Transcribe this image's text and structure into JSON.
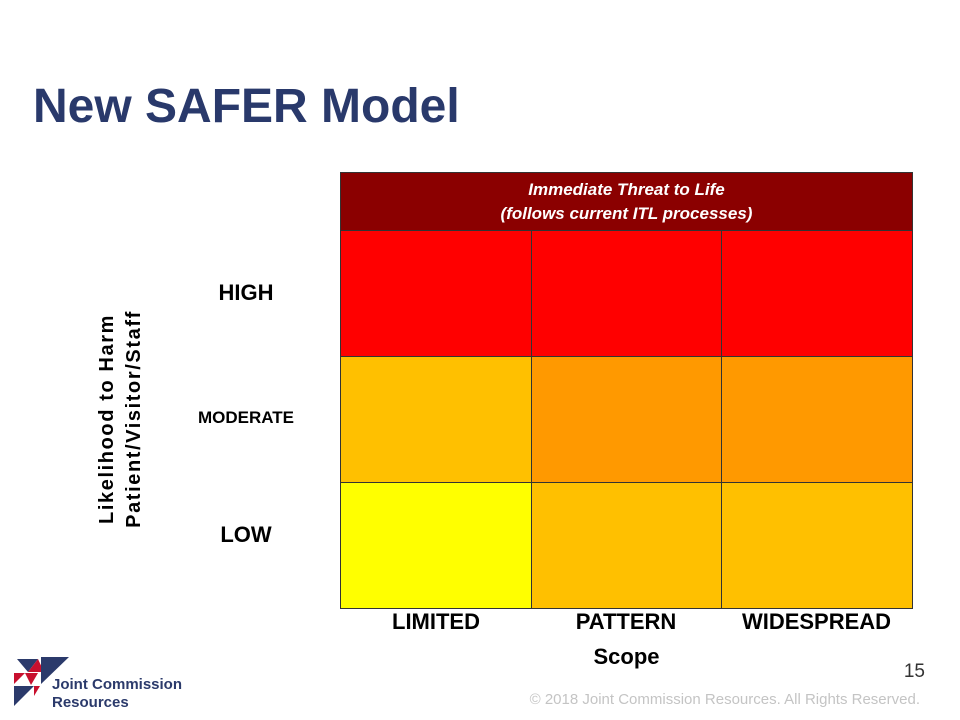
{
  "slide": {
    "title": "New SAFER Model",
    "page_number": "15",
    "copyright": "© 2018 Joint Commission Resources. All Rights Reserved."
  },
  "matrix": {
    "header": {
      "line1": "Immediate Threat to Life",
      "line2": "(follows current ITL processes)",
      "color": "#8b0000"
    },
    "y_axis": {
      "line1": "Likelihood to Harm",
      "line2": "Patient/Visitor/Staff"
    },
    "x_axis": {
      "label": "Scope",
      "columns": [
        "LIMITED",
        "PATTERN",
        "WIDESPREAD"
      ]
    },
    "rows": [
      {
        "label": "HIGH",
        "cell_colors": [
          "#ff0000",
          "#ff0000",
          "#ff0000"
        ]
      },
      {
        "label": "MODERATE",
        "cell_colors": [
          "#ffc000",
          "#ff9900",
          "#ff9900"
        ]
      },
      {
        "label": "LOW",
        "cell_colors": [
          "#ffff00",
          "#ffc000",
          "#ffc000"
        ]
      }
    ]
  },
  "logo": {
    "line1": "Joint Commission",
    "line2": "Resources",
    "navy": "#2b3a6b",
    "red": "#c8102e"
  },
  "colors": {
    "title": "#29396b",
    "label_text": "#000000"
  }
}
